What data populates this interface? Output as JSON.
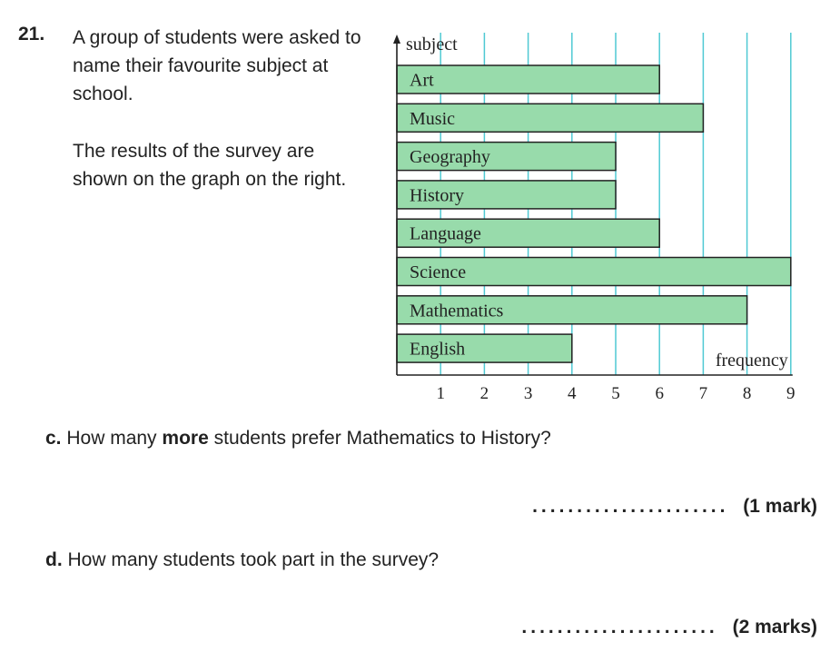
{
  "question": {
    "number": "21.",
    "intro_line1": "A group of students were asked to name their favourite subject at school.",
    "intro_line2": "The results of the survey are shown on the graph on the right."
  },
  "chart_data": {
    "type": "bar",
    "orientation": "horizontal",
    "ylabel": "subject",
    "xlabel": "frequency",
    "categories": [
      "Art",
      "Music",
      "Geography",
      "History",
      "Language",
      "Science",
      "Mathematics",
      "English"
    ],
    "values": [
      6,
      7,
      5,
      5,
      6,
      9,
      8,
      4
    ],
    "x_ticks": [
      "1",
      "2",
      "3",
      "4",
      "5",
      "6",
      "7",
      "8",
      "9"
    ],
    "xlim": [
      0,
      9
    ],
    "grid": "vertical",
    "colors": {
      "bar": "#98dbab",
      "grid": "#4fc9d3",
      "axis": "#222222"
    }
  },
  "part_c": {
    "label": "c.",
    "text_before": "How many",
    "text_bold": "more",
    "text_after": "students prefer Mathematics to History?",
    "answer_dots": "......................",
    "marks": "(1 mark)"
  },
  "part_d": {
    "label": "d.",
    "text": "How many students took part in the survey?",
    "answer_dots": "......................",
    "marks": "(2 marks)"
  }
}
